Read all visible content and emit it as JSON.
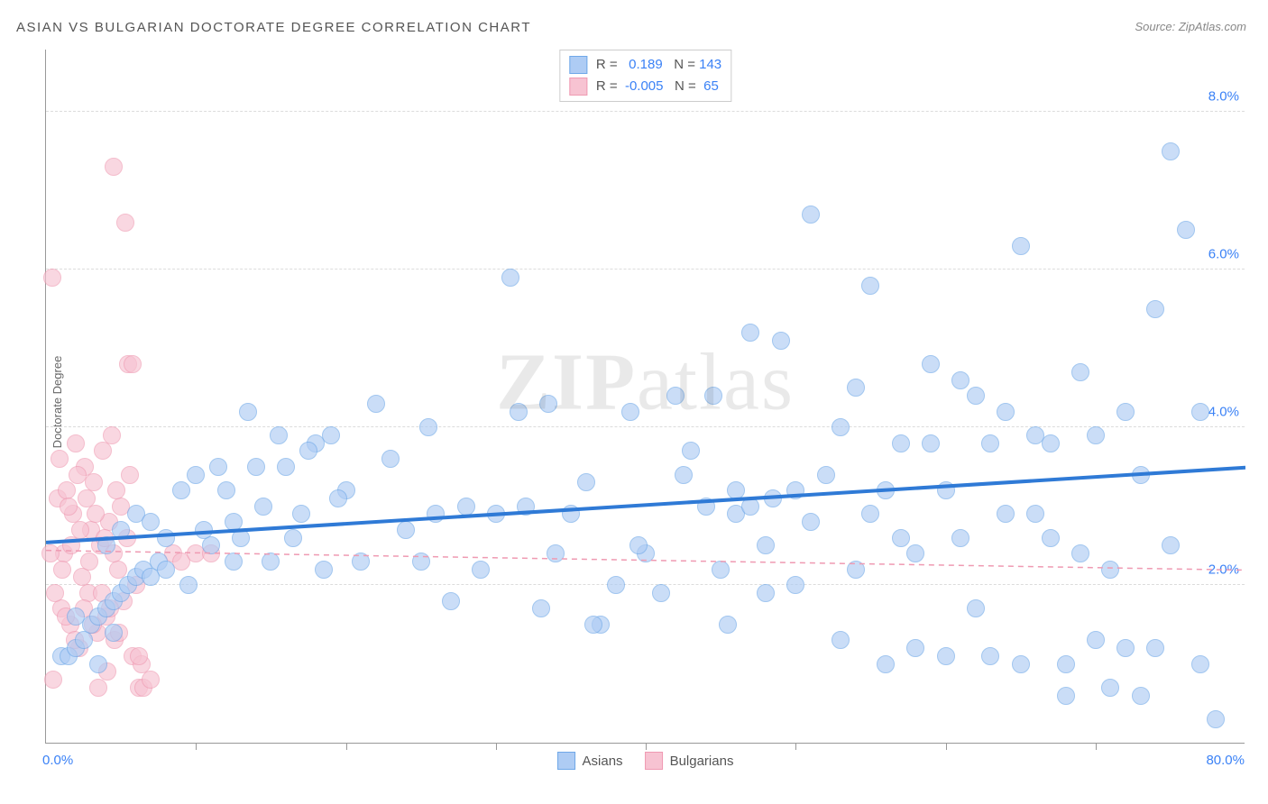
{
  "title": "ASIAN VS BULGARIAN DOCTORATE DEGREE CORRELATION CHART",
  "source": "Source: ZipAtlas.com",
  "ylabel": "Doctorate Degree",
  "watermark_bold": "ZIP",
  "watermark_light": "atlas",
  "chart": {
    "type": "scatter",
    "xlim": [
      0,
      80
    ],
    "ylim": [
      0,
      8.8
    ],
    "yticks": [
      2.0,
      4.0,
      6.0,
      8.0
    ],
    "ytick_labels": [
      "2.0%",
      "4.0%",
      "6.0%",
      "8.0%"
    ],
    "xtick_positions": [
      10,
      20,
      30,
      40,
      50,
      60,
      70
    ],
    "xlim_labels": [
      "0.0%",
      "80.0%"
    ],
    "grid_color": "#dcdcdc",
    "axis_color": "#999999",
    "background": "#ffffff",
    "marker_radius": 10,
    "marker_stroke_width": 1.5,
    "series": [
      {
        "name": "Asians",
        "fill": "#aeccf4",
        "stroke": "#6fa8e8",
        "fill_opacity": 0.65,
        "trend": {
          "y0": 2.55,
          "y1": 3.5,
          "color": "#2f7ad6",
          "width": 4,
          "dash": "none"
        },
        "points": [
          [
            1.0,
            1.1
          ],
          [
            1.5,
            1.1
          ],
          [
            2.0,
            1.2
          ],
          [
            2.5,
            1.3
          ],
          [
            3.0,
            1.5
          ],
          [
            3.5,
            1.6
          ],
          [
            4.0,
            1.7
          ],
          [
            4.5,
            1.8
          ],
          [
            5.0,
            1.9
          ],
          [
            5.5,
            2.0
          ],
          [
            6.0,
            2.1
          ],
          [
            6.5,
            2.2
          ],
          [
            7.0,
            2.1
          ],
          [
            7.5,
            2.3
          ],
          [
            8.0,
            2.2
          ],
          [
            4.0,
            2.5
          ],
          [
            5.0,
            2.7
          ],
          [
            6.0,
            2.9
          ],
          [
            7.0,
            2.8
          ],
          [
            8.0,
            2.6
          ],
          [
            9.0,
            3.2
          ],
          [
            10.0,
            3.4
          ],
          [
            12.0,
            3.2
          ],
          [
            14.0,
            3.5
          ],
          [
            15.0,
            2.3
          ],
          [
            16.0,
            3.5
          ],
          [
            17.0,
            2.9
          ],
          [
            18.0,
            3.8
          ],
          [
            19.0,
            3.9
          ],
          [
            20.0,
            3.2
          ],
          [
            21.0,
            2.3
          ],
          [
            22.0,
            4.3
          ],
          [
            23.0,
            3.6
          ],
          [
            24.0,
            2.7
          ],
          [
            25.0,
            2.3
          ],
          [
            26.0,
            2.9
          ],
          [
            27.0,
            1.8
          ],
          [
            28.0,
            3.0
          ],
          [
            29.0,
            2.2
          ],
          [
            30.0,
            2.9
          ],
          [
            31.0,
            5.9
          ],
          [
            31.5,
            4.2
          ],
          [
            32.0,
            3.0
          ],
          [
            33.0,
            1.7
          ],
          [
            34.0,
            2.4
          ],
          [
            35.0,
            2.9
          ],
          [
            36.0,
            3.3
          ],
          [
            37.0,
            1.5
          ],
          [
            38.0,
            2.0
          ],
          [
            39.0,
            4.2
          ],
          [
            40.0,
            2.4
          ],
          [
            41.0,
            1.9
          ],
          [
            42.0,
            4.4
          ],
          [
            43.0,
            3.7
          ],
          [
            44.0,
            3.0
          ],
          [
            44.5,
            4.4
          ],
          [
            45.0,
            2.2
          ],
          [
            46.0,
            2.9
          ],
          [
            46.0,
            3.2
          ],
          [
            47.0,
            3.0
          ],
          [
            47.0,
            5.2
          ],
          [
            48.0,
            1.9
          ],
          [
            48.0,
            2.5
          ],
          [
            49.0,
            5.1
          ],
          [
            50.0,
            3.2
          ],
          [
            50.0,
            2.0
          ],
          [
            51.0,
            6.7
          ],
          [
            51.0,
            2.8
          ],
          [
            52.0,
            3.4
          ],
          [
            53.0,
            4.0
          ],
          [
            53.0,
            1.3
          ],
          [
            54.0,
            2.2
          ],
          [
            54.0,
            4.5
          ],
          [
            55.0,
            5.8
          ],
          [
            55.0,
            2.9
          ],
          [
            56.0,
            1.0
          ],
          [
            56.0,
            3.2
          ],
          [
            57.0,
            3.8
          ],
          [
            57.0,
            2.6
          ],
          [
            58.0,
            1.2
          ],
          [
            58.0,
            2.4
          ],
          [
            59.0,
            3.8
          ],
          [
            59.0,
            4.8
          ],
          [
            60.0,
            3.2
          ],
          [
            60.0,
            1.1
          ],
          [
            61.0,
            2.6
          ],
          [
            61.0,
            4.6
          ],
          [
            62.0,
            1.7
          ],
          [
            62.0,
            4.4
          ],
          [
            63.0,
            3.8
          ],
          [
            63.0,
            1.1
          ],
          [
            64.0,
            2.9
          ],
          [
            64.0,
            4.2
          ],
          [
            65.0,
            6.3
          ],
          [
            65.0,
            1.0
          ],
          [
            66.0,
            3.9
          ],
          [
            66.0,
            2.9
          ],
          [
            67.0,
            2.6
          ],
          [
            67.0,
            3.8
          ],
          [
            68.0,
            1.0
          ],
          [
            68.0,
            0.6
          ],
          [
            69.0,
            4.7
          ],
          [
            69.0,
            2.4
          ],
          [
            70.0,
            1.3
          ],
          [
            70.0,
            3.9
          ],
          [
            71.0,
            0.7
          ],
          [
            71.0,
            2.2
          ],
          [
            72.0,
            4.2
          ],
          [
            72.0,
            1.2
          ],
          [
            73.0,
            0.6
          ],
          [
            73.0,
            3.4
          ],
          [
            74.0,
            1.2
          ],
          [
            74.0,
            5.5
          ],
          [
            75.0,
            2.5
          ],
          [
            75.0,
            7.5
          ],
          [
            76.0,
            6.5
          ],
          [
            77.0,
            4.2
          ],
          [
            77.0,
            1.0
          ],
          [
            78.0,
            0.3
          ],
          [
            11.0,
            2.5
          ],
          [
            12.5,
            2.8
          ],
          [
            13.5,
            4.2
          ],
          [
            14.5,
            3.0
          ],
          [
            15.5,
            3.9
          ],
          [
            16.5,
            2.6
          ],
          [
            17.5,
            3.7
          ],
          [
            18.5,
            2.2
          ],
          [
            19.5,
            3.1
          ],
          [
            25.5,
            4.0
          ],
          [
            33.5,
            4.3
          ],
          [
            36.5,
            1.5
          ],
          [
            39.5,
            2.5
          ],
          [
            42.5,
            3.4
          ],
          [
            45.5,
            1.5
          ],
          [
            48.5,
            3.1
          ],
          [
            9.5,
            2.0
          ],
          [
            10.5,
            2.7
          ],
          [
            11.5,
            3.5
          ],
          [
            12.5,
            2.3
          ],
          [
            13.0,
            2.6
          ],
          [
            3.5,
            1.0
          ],
          [
            2.0,
            1.6
          ],
          [
            4.5,
            1.4
          ]
        ]
      },
      {
        "name": "Bulgarians",
        "fill": "#f7c3d2",
        "stroke": "#ef9ab2",
        "fill_opacity": 0.65,
        "trend": {
          "y0": 2.45,
          "y1": 2.2,
          "color": "#ef9ab2",
          "width": 1.5,
          "dash": "6,5"
        },
        "points": [
          [
            0.5,
            0.8
          ],
          [
            0.8,
            3.1
          ],
          [
            1.0,
            1.7
          ],
          [
            1.2,
            2.4
          ],
          [
            1.4,
            3.2
          ],
          [
            1.6,
            1.5
          ],
          [
            1.8,
            2.9
          ],
          [
            2.0,
            3.8
          ],
          [
            2.2,
            1.2
          ],
          [
            2.4,
            2.1
          ],
          [
            2.6,
            3.5
          ],
          [
            2.8,
            1.9
          ],
          [
            3.0,
            2.7
          ],
          [
            3.2,
            3.3
          ],
          [
            3.4,
            1.4
          ],
          [
            3.6,
            2.5
          ],
          [
            3.8,
            3.7
          ],
          [
            4.0,
            1.6
          ],
          [
            4.2,
            2.8
          ],
          [
            4.4,
            3.9
          ],
          [
            4.6,
            1.3
          ],
          [
            4.8,
            2.2
          ],
          [
            5.0,
            3.0
          ],
          [
            5.2,
            1.8
          ],
          [
            5.4,
            2.6
          ],
          [
            5.6,
            3.4
          ],
          [
            5.8,
            1.1
          ],
          [
            6.0,
            2.0
          ],
          [
            6.2,
            0.7
          ],
          [
            6.4,
            1.0
          ],
          [
            0.3,
            2.4
          ],
          [
            0.6,
            1.9
          ],
          [
            0.9,
            3.6
          ],
          [
            1.1,
            2.2
          ],
          [
            1.3,
            1.6
          ],
          [
            1.5,
            3.0
          ],
          [
            1.7,
            2.5
          ],
          [
            1.9,
            1.3
          ],
          [
            2.1,
            3.4
          ],
          [
            2.3,
            2.7
          ],
          [
            2.5,
            1.7
          ],
          [
            2.7,
            3.1
          ],
          [
            2.9,
            2.3
          ],
          [
            3.1,
            1.5
          ],
          [
            3.3,
            2.9
          ],
          [
            3.5,
            0.7
          ],
          [
            3.7,
            1.9
          ],
          [
            3.9,
            2.6
          ],
          [
            4.1,
            0.9
          ],
          [
            4.3,
            1.7
          ],
          [
            4.5,
            2.4
          ],
          [
            4.7,
            3.2
          ],
          [
            4.9,
            1.4
          ],
          [
            4.5,
            7.3
          ],
          [
            5.3,
            6.6
          ],
          [
            5.5,
            4.8
          ],
          [
            5.8,
            4.8
          ],
          [
            0.4,
            5.9
          ],
          [
            6.5,
            0.7
          ],
          [
            7.0,
            0.8
          ],
          [
            8.5,
            2.4
          ],
          [
            9.0,
            2.3
          ],
          [
            10.0,
            2.4
          ],
          [
            11.0,
            2.4
          ],
          [
            6.2,
            1.1
          ]
        ]
      }
    ]
  },
  "legend_top": {
    "rows": [
      {
        "swatch_fill": "#aeccf4",
        "swatch_stroke": "#6fa8e8",
        "r_label": "R =",
        "r_val": "0.189",
        "n_label": "N =",
        "n_val": "143"
      },
      {
        "swatch_fill": "#f7c3d2",
        "swatch_stroke": "#ef9ab2",
        "r_label": "R =",
        "r_val": "-0.005",
        "n_label": "N =",
        "n_val": "65"
      }
    ]
  },
  "legend_bottom": {
    "items": [
      {
        "swatch_fill": "#aeccf4",
        "swatch_stroke": "#6fa8e8",
        "label": "Asians"
      },
      {
        "swatch_fill": "#f7c3d2",
        "swatch_stroke": "#ef9ab2",
        "label": "Bulgarians"
      }
    ]
  }
}
